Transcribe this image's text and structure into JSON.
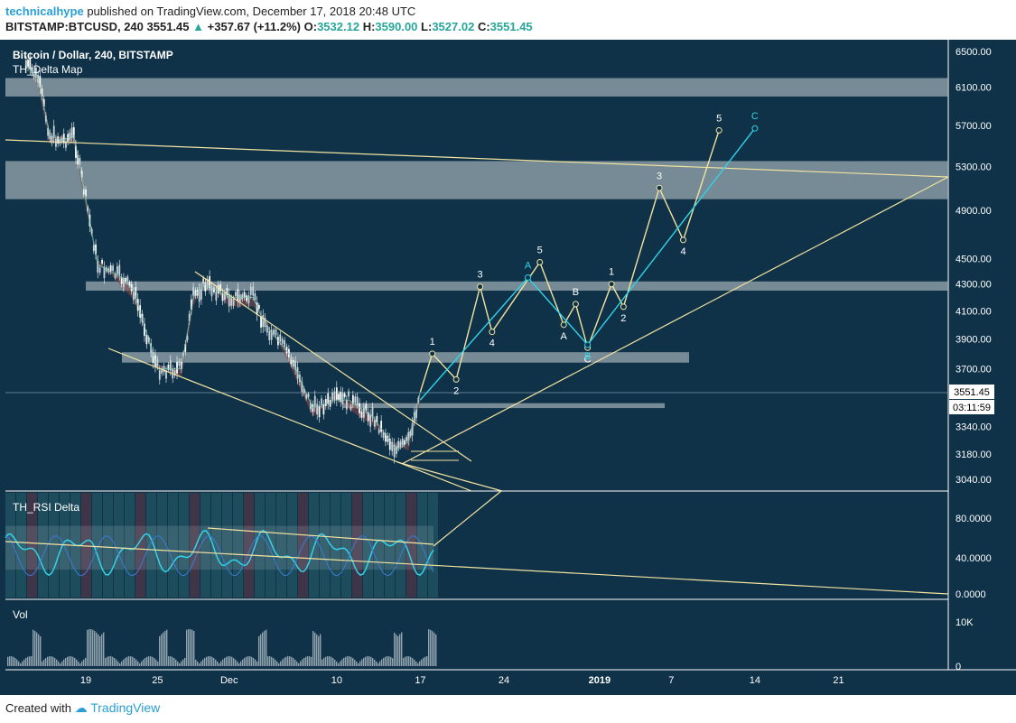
{
  "header": {
    "author": "technicalhype",
    "published": "published on TradingView.com, December 17, 2018 20:48 UTC",
    "symbol": "BITSTAMP:BTCUSD, 240",
    "last": "3551.45",
    "arrow": "▲",
    "change": "+357.67 (+11.2%)",
    "o_label": "O:",
    "o_val": "3532.12",
    "h_label": "H:",
    "h_val": "3590.00",
    "l_label": "L:",
    "l_val": "3527.02",
    "c_label": "C:",
    "c_val": "3551.45"
  },
  "panes": {
    "main_title": "Bitcoin / Dollar, 240, BITSTAMP",
    "main_indicator": "TH_Delta Map",
    "rsi_title": "TH_RSI Delta",
    "vol_title": "Vol"
  },
  "price_badge": {
    "price": "3551.45",
    "countdown": "03:11:59"
  },
  "footer": {
    "created": "Created with",
    "brand": "TradingView"
  },
  "colors": {
    "background": "#0f3248",
    "zone": "#9aa9b0",
    "wave": "#f2e3a0",
    "wave_alt": "#31d3e8",
    "axis_text": "#ffffff"
  },
  "chart_data": [
    {
      "type": "candlestick",
      "title": "Bitcoin / Dollar, 240, BITSTAMP",
      "y_scale": "log",
      "y_ticks": [
        "6500.00",
        "6100.00",
        "5700.00",
        "5300.00",
        "4900.00",
        "4500.00",
        "4300.00",
        "4100.00",
        "3900.00",
        "3700.00",
        "3340.00",
        "3180.00",
        "3040.00"
      ],
      "x_ticks": [
        "19",
        "25",
        "Dec",
        "10",
        "17",
        "24",
        "2019",
        "7",
        "14",
        "21"
      ],
      "last_price": 3551.45,
      "zones": [
        {
          "from": 6000,
          "to": 6200
        },
        {
          "from": 5000,
          "to": 5350
        },
        {
          "from": 4250,
          "to": 4320
        },
        {
          "from": 3740,
          "to": 3810
        },
        {
          "from": 3450,
          "to": 3480
        }
      ],
      "close_path": [
        [
          "Nov 14",
          6350
        ],
        [
          "Nov 15",
          6200
        ],
        [
          "Nov 16",
          5600
        ],
        [
          "Nov 17",
          5550
        ],
        [
          "Nov 18",
          5600
        ],
        [
          "Nov 19",
          5000
        ],
        [
          "Nov 20",
          4450
        ],
        [
          "Nov 22",
          4350
        ],
        [
          "Nov 23",
          4250
        ],
        [
          "Nov 25",
          3700
        ],
        [
          "Nov 27",
          3700
        ],
        [
          "Nov 28",
          4200
        ],
        [
          "Nov 29",
          4300
        ],
        [
          "Dec 1",
          4200
        ],
        [
          "Dec 3",
          4200
        ],
        [
          "Dec 4",
          4000
        ],
        [
          "Dec 6",
          3800
        ],
        [
          "Dec 8",
          3450
        ],
        [
          "Dec 10",
          3500
        ],
        [
          "Dec 11",
          3500
        ],
        [
          "Dec 13",
          3400
        ],
        [
          "Dec 15",
          3200
        ],
        [
          "Dec 16",
          3250
        ],
        [
          "Dec 17",
          3551
        ]
      ],
      "wave_projection_primary": [
        {
          "label": "",
          "x": "Dec 17",
          "y": 3551
        },
        {
          "label": "1",
          "x": "Dec 18",
          "y": 3800
        },
        {
          "label": "2",
          "x": "Dec 20",
          "y": 3630
        },
        {
          "label": "3",
          "x": "Dec 22",
          "y": 4280
        },
        {
          "label": "4",
          "x": "Dec 23",
          "y": 3950
        },
        {
          "label": "5",
          "x": "Dec 27",
          "y": 4470
        },
        {
          "label": "A",
          "x": "Dec 29",
          "y": 4000
        },
        {
          "label": "B",
          "x": "Dec 30",
          "y": 4150
        },
        {
          "label": "C",
          "x": "Dec 31",
          "y": 3840
        },
        {
          "label": "1",
          "x": "Jan 2",
          "y": 4300
        },
        {
          "label": "2",
          "x": "Jan 3",
          "y": 4130
        },
        {
          "label": "3",
          "x": "Jan 6",
          "y": 5100
        },
        {
          "label": "4",
          "x": "Jan 8",
          "y": 4650
        },
        {
          "label": "5",
          "x": "Jan 11",
          "y": 5650
        }
      ],
      "wave_projection_alt": [
        {
          "label": "",
          "x": "Dec 17",
          "y": 3500
        },
        {
          "label": "A",
          "x": "Dec 26",
          "y": 4350
        },
        {
          "label": "B",
          "x": "Dec 31",
          "y": 3860
        },
        {
          "label": "C",
          "x": "Jan 14",
          "y": 5670
        }
      ]
    },
    {
      "type": "line",
      "title": "TH_RSI Delta",
      "y_ticks": [
        "80.0000",
        "40.0000",
        "0.0000"
      ]
    },
    {
      "type": "bar",
      "title": "Vol",
      "y_ticks": [
        "10K",
        "0"
      ]
    }
  ]
}
